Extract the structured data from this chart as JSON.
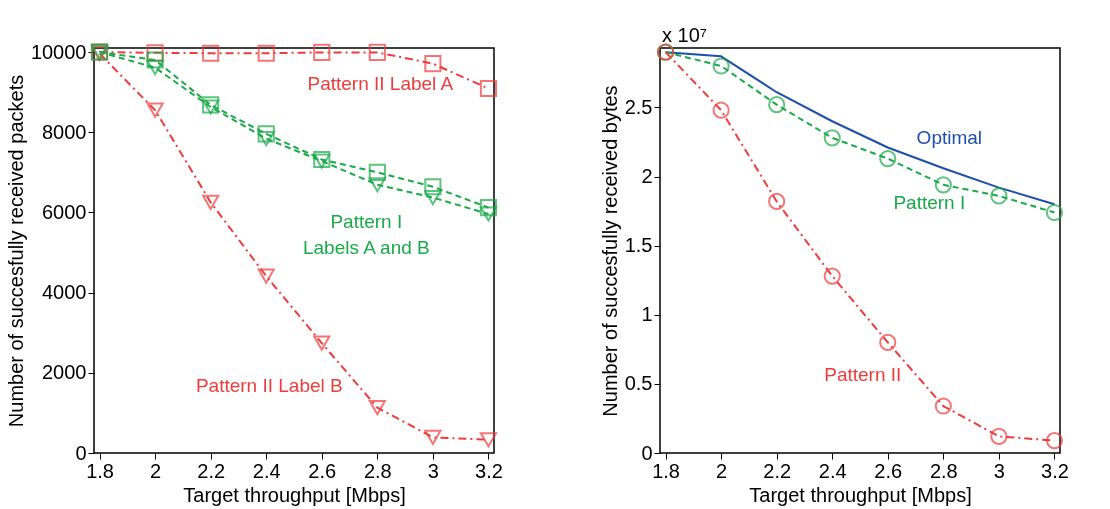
{
  "chart_data": [
    {
      "type": "line",
      "xlabel": "Target throughput [Mbps]",
      "ylabel": "Number of succesfully received packets",
      "x": [
        1.8,
        2.0,
        2.2,
        2.4,
        2.6,
        2.8,
        3.0,
        3.2
      ],
      "xlim": [
        1.78,
        3.22
      ],
      "xticks": [
        1.8,
        2,
        2.2,
        2.4,
        2.6,
        2.8,
        3,
        3.2
      ],
      "ylim": [
        0,
        10100
      ],
      "yticks": [
        0,
        2000,
        4000,
        6000,
        8000,
        10000
      ],
      "series": [
        {
          "name": "Pattern II Label A",
          "color": "#ee3b3b",
          "marker": "square",
          "line_style": "dotted",
          "values": [
            10000,
            9980,
            9970,
            9970,
            9990,
            9990,
            9710,
            9090
          ]
        },
        {
          "name": "Pattern II Label B",
          "color": "#ee3b3b",
          "marker": "triangle",
          "line_style": "dotted",
          "values": [
            9960,
            8550,
            6250,
            4410,
            2740,
            1130,
            390,
            330
          ]
        },
        {
          "name": "Pattern I\nLabels A and B",
          "color": "#1aaa4a",
          "marker": "square",
          "line_style": "dashed",
          "values": [
            10000,
            9800,
            8680,
            7960,
            7320,
            7000,
            6640,
            6120
          ]
        },
        {
          "color": "#1aaa4a",
          "marker": "triangle",
          "line_style": "dashed",
          "values": [
            10000,
            9610,
            8630,
            7840,
            7280,
            6690,
            6370,
            5960
          ]
        }
      ]
    },
    {
      "type": "line",
      "xlabel": "Target throughput [Mbps]",
      "ylabel": "Number of succesfully received bytes",
      "x": [
        1.8,
        2.0,
        2.2,
        2.4,
        2.6,
        2.8,
        3.0,
        3.2
      ],
      "xlim": [
        1.78,
        3.22
      ],
      "xticks": [
        1.8,
        2,
        2.2,
        2.4,
        2.6,
        2.8,
        3,
        3.2
      ],
      "ylim": [
        0,
        2.93
      ],
      "yticks": [
        0,
        0.5,
        1,
        1.5,
        2,
        2.5
      ],
      "series": [
        {
          "name": "Optimal",
          "color": "#1f4fa8",
          "marker": "none",
          "line_style": "solid",
          "values": [
            2.9,
            2.87,
            2.61,
            2.4,
            2.21,
            2.06,
            1.92,
            1.8
          ]
        },
        {
          "name": "Pattern I",
          "color": "#1aaa4a",
          "marker": "circle",
          "line_style": "dashed",
          "values": [
            2.9,
            2.8,
            2.52,
            2.28,
            2.13,
            1.94,
            1.86,
            1.74
          ]
        },
        {
          "name": "Pattern II",
          "color": "#ee3b3b",
          "marker": "circle",
          "line_style": "dotted",
          "values": [
            2.9,
            2.48,
            1.82,
            1.28,
            0.8,
            0.34,
            0.12,
            0.09
          ]
        }
      ],
      "annotations": [
        "x 10⁷"
      ]
    }
  ]
}
